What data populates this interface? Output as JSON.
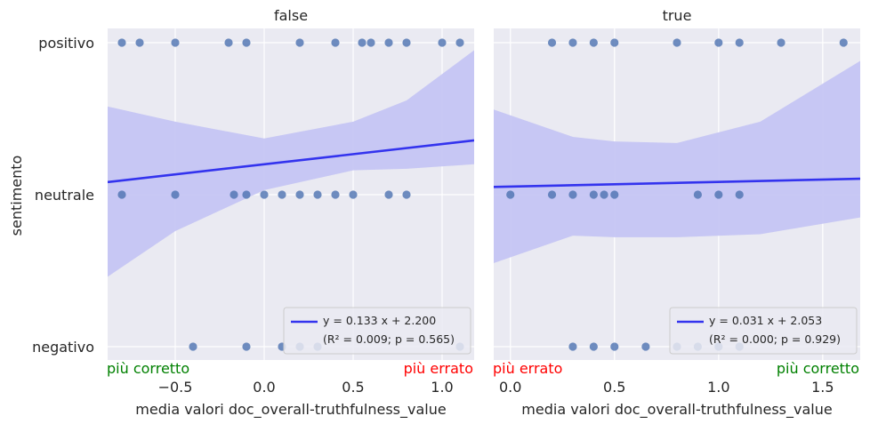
{
  "chart_data": {
    "type": "scatter",
    "ylabel": "sentimento",
    "y_categories": [
      "negativo",
      "neutrale",
      "positivo"
    ],
    "colors": {
      "points": "#4c72b0",
      "regression_line": "#3333ee",
      "confidence_band": "#c5c5f3",
      "panel_background": "#eaeaf2",
      "green_label": "#008000",
      "red_label": "#ff0000"
    },
    "panels": [
      {
        "title": "false",
        "xlabel": "media valori doc_overall-truthfulness_value",
        "xlim": [
          -0.88,
          1.18
        ],
        "xticks": [
          -0.5,
          0.0,
          0.5,
          1.0
        ],
        "xtick_labels": [
          "−0.5",
          "0.0",
          "0.5",
          "1.0"
        ],
        "left_note": "più corretto",
        "right_note": "più errato",
        "left_note_color": "green",
        "right_note_color": "red",
        "regression": {
          "slope": 0.133,
          "intercept": 2.2
        },
        "legend_line1": "y = 0.133 x + 2.200",
        "legend_line2": "(R² = 0.009; p = 0.565)",
        "ci_upper": [
          [
            -0.88,
            2.58
          ],
          [
            -0.5,
            2.48
          ],
          [
            0.0,
            2.37
          ],
          [
            0.5,
            2.48
          ],
          [
            0.8,
            2.62
          ],
          [
            1.18,
            2.95
          ]
        ],
        "ci_lower": [
          [
            -0.88,
            1.46
          ],
          [
            -0.5,
            1.76
          ],
          [
            0.0,
            2.03
          ],
          [
            0.5,
            2.16
          ],
          [
            0.8,
            2.17
          ],
          [
            1.18,
            2.2
          ]
        ],
        "points": [
          {
            "x": -0.8,
            "y": 3
          },
          {
            "x": -0.7,
            "y": 3
          },
          {
            "x": -0.5,
            "y": 3
          },
          {
            "x": -0.2,
            "y": 3
          },
          {
            "x": -0.1,
            "y": 3
          },
          {
            "x": 0.2,
            "y": 3
          },
          {
            "x": 0.4,
            "y": 3
          },
          {
            "x": 0.55,
            "y": 3
          },
          {
            "x": 0.6,
            "y": 3
          },
          {
            "x": 0.7,
            "y": 3
          },
          {
            "x": 0.8,
            "y": 3
          },
          {
            "x": 1.0,
            "y": 3
          },
          {
            "x": 1.1,
            "y": 3
          },
          {
            "x": -0.8,
            "y": 2
          },
          {
            "x": -0.5,
            "y": 2
          },
          {
            "x": -0.17,
            "y": 2
          },
          {
            "x": -0.1,
            "y": 2
          },
          {
            "x": 0.0,
            "y": 2
          },
          {
            "x": 0.1,
            "y": 2
          },
          {
            "x": 0.2,
            "y": 2
          },
          {
            "x": 0.3,
            "y": 2
          },
          {
            "x": 0.4,
            "y": 2
          },
          {
            "x": 0.5,
            "y": 2
          },
          {
            "x": 0.7,
            "y": 2
          },
          {
            "x": 0.8,
            "y": 2
          },
          {
            "x": -0.4,
            "y": 1
          },
          {
            "x": -0.1,
            "y": 1
          },
          {
            "x": 0.1,
            "y": 1
          },
          {
            "x": 0.2,
            "y": 1
          },
          {
            "x": 0.3,
            "y": 1
          },
          {
            "x": 1.1,
            "y": 1
          }
        ]
      },
      {
        "title": "true",
        "xlabel": "media valori doc_overall-truthfulness_value",
        "xlim": [
          -0.08,
          1.68
        ],
        "xticks": [
          0.0,
          0.5,
          1.0,
          1.5
        ],
        "xtick_labels": [
          "0.0",
          "0.5",
          "1.0",
          "1.5"
        ],
        "left_note": "più errato",
        "right_note": "più corretto",
        "left_note_color": "red",
        "right_note_color": "green",
        "regression": {
          "slope": 0.031,
          "intercept": 2.053
        },
        "legend_line1": "y = 0.031 x + 2.053",
        "legend_line2": "(R² = 0.000; p = 0.929)",
        "ci_upper": [
          [
            -0.08,
            2.56
          ],
          [
            0.3,
            2.38
          ],
          [
            0.5,
            2.35
          ],
          [
            0.8,
            2.34
          ],
          [
            1.2,
            2.48
          ],
          [
            1.68,
            2.88
          ]
        ],
        "ci_lower": [
          [
            -0.08,
            1.55
          ],
          [
            0.3,
            1.73
          ],
          [
            0.5,
            1.72
          ],
          [
            0.8,
            1.72
          ],
          [
            1.2,
            1.74
          ],
          [
            1.68,
            1.85
          ]
        ],
        "points": [
          {
            "x": 0.2,
            "y": 3
          },
          {
            "x": 0.3,
            "y": 3
          },
          {
            "x": 0.4,
            "y": 3
          },
          {
            "x": 0.5,
            "y": 3
          },
          {
            "x": 0.8,
            "y": 3
          },
          {
            "x": 1.0,
            "y": 3
          },
          {
            "x": 1.1,
            "y": 3
          },
          {
            "x": 1.3,
            "y": 3
          },
          {
            "x": 1.6,
            "y": 3
          },
          {
            "x": 0.0,
            "y": 2
          },
          {
            "x": 0.2,
            "y": 2
          },
          {
            "x": 0.3,
            "y": 2
          },
          {
            "x": 0.4,
            "y": 2
          },
          {
            "x": 0.45,
            "y": 2
          },
          {
            "x": 0.5,
            "y": 2
          },
          {
            "x": 0.9,
            "y": 2
          },
          {
            "x": 1.0,
            "y": 2
          },
          {
            "x": 1.1,
            "y": 2
          },
          {
            "x": 0.3,
            "y": 1
          },
          {
            "x": 0.4,
            "y": 1
          },
          {
            "x": 0.5,
            "y": 1
          },
          {
            "x": 0.65,
            "y": 1
          },
          {
            "x": 0.8,
            "y": 1
          },
          {
            "x": 0.9,
            "y": 1
          },
          {
            "x": 1.0,
            "y": 1
          },
          {
            "x": 1.1,
            "y": 1
          }
        ]
      }
    ]
  }
}
